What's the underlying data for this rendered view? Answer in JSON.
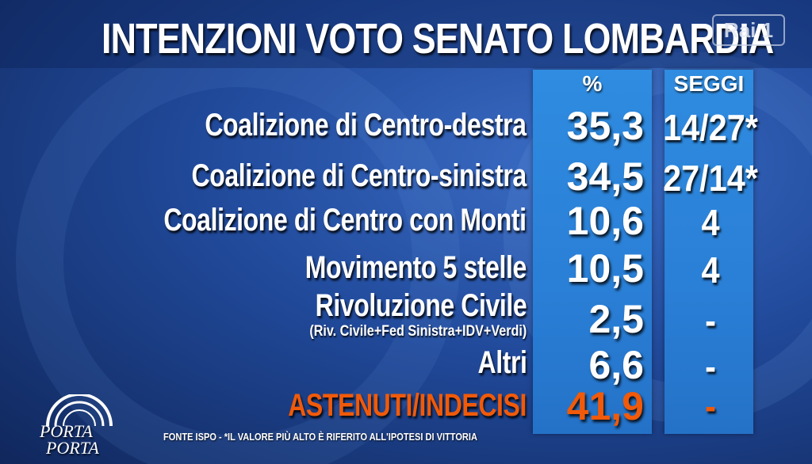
{
  "title": "INTENZIONI VOTO SENATO LOMBARDIA",
  "channel_logo": "Rai 1",
  "headers": {
    "percent": "%",
    "seats": "SEGGI"
  },
  "rows": [
    {
      "label": "Coalizione di Centro-destra",
      "sub": "",
      "percent": "35,3",
      "seats": "14/27*"
    },
    {
      "label": "Coalizione di Centro-sinistra",
      "sub": "",
      "percent": "34,5",
      "seats": "27/14*"
    },
    {
      "label": "Coalizione di Centro con Monti",
      "sub": "",
      "percent": "10,6",
      "seats": "4"
    },
    {
      "label": "Movimento 5 stelle",
      "sub": "",
      "percent": "10,5",
      "seats": "4"
    },
    {
      "label": "Rivoluzione Civile",
      "sub": "(Riv. Civile+Fed Sinistra+IDV+Verdi)",
      "percent": "2,5",
      "seats": "-"
    },
    {
      "label": "Altri",
      "sub": "",
      "percent": "6,6",
      "seats": "-"
    },
    {
      "label": "ASTENUTI/INDECISI",
      "sub": "",
      "percent": "41,9",
      "seats": "-"
    }
  ],
  "footer": "FONTE ISPO - *IL VALORE PIÙ ALTO È RIFERITO ALL'IPOTESI DI VITTORIA",
  "show_logo": {
    "line1": "PORTA",
    "line2": "PORTA"
  },
  "colors": {
    "accent": "#2a7fd6",
    "highlight": "#f05a0a",
    "background": "#214a9b"
  }
}
